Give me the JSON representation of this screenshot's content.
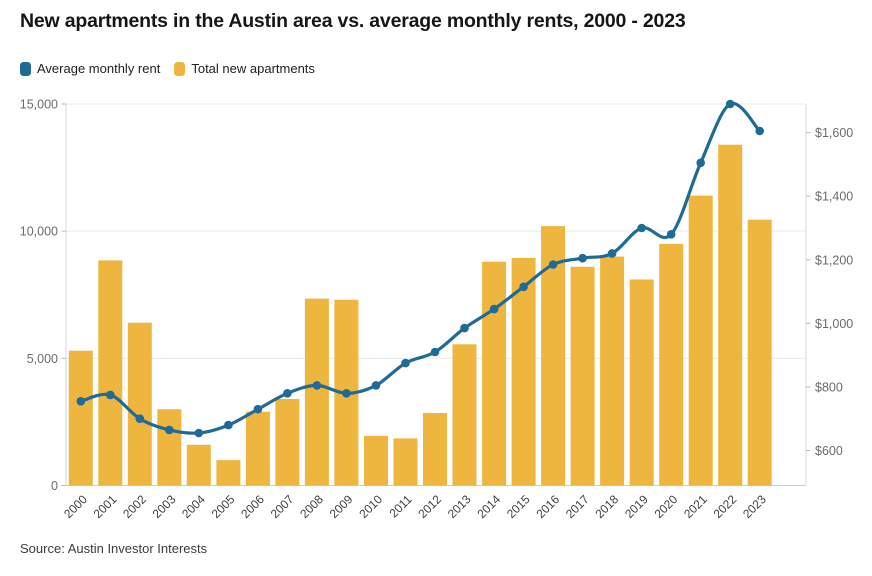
{
  "title": "New apartments in the Austin area vs. average monthly rents, 2000 - 2023",
  "source": "Source: Austin Investor Interests",
  "colors": {
    "rent_line": "#1F6A96",
    "apartment_bar": "#EEB63F",
    "grid": "#eaeaea",
    "axis_line": "#d9d9d9",
    "baseline": "#cccccc",
    "tick": "#bbbbbb"
  },
  "chart_data": {
    "type": "combo: line + bar, dual axis",
    "title": "New apartments in the Austin area vs. average monthly rents, 2000 - 2023",
    "categories": [
      "2000",
      "2001",
      "2002",
      "2003",
      "2004",
      "2005",
      "2006",
      "2007",
      "2008",
      "2009",
      "2010",
      "2011",
      "2012",
      "2013",
      "2014",
      "2015",
      "2016",
      "2017",
      "2018",
      "2019",
      "2020",
      "2021",
      "2022",
      "2023"
    ],
    "series": [
      {
        "name": "Average monthly rent",
        "type": "line",
        "axis": "right",
        "color": "#1F6A96",
        "values": [
          755,
          775,
          700,
          665,
          655,
          680,
          730,
          780,
          805,
          780,
          805,
          875,
          910,
          985,
          1045,
          1115,
          1185,
          1205,
          1220,
          1300,
          1280,
          1505,
          1690,
          1605
        ]
      },
      {
        "name": "Total new apartments",
        "type": "bar",
        "axis": "left",
        "color": "#EEB63F",
        "values": [
          5300,
          8850,
          6400,
          3000,
          1600,
          1000,
          2900,
          3400,
          7350,
          7300,
          1950,
          1850,
          2850,
          5550,
          8800,
          8950,
          10200,
          8600,
          9000,
          8100,
          9500,
          11400,
          13400,
          10450
        ]
      }
    ],
    "left_axis": {
      "range": [
        0,
        15000
      ],
      "ticks": [
        {
          "value": 0,
          "label": "0"
        },
        {
          "value": 5000,
          "label": "5,000"
        },
        {
          "value": 10000,
          "label": "10,000"
        },
        {
          "value": 15000,
          "label": "15,000"
        }
      ]
    },
    "right_axis": {
      "range": [
        490,
        1690
      ],
      "ticks": [
        {
          "value": 600,
          "label": "$600"
        },
        {
          "value": 800,
          "label": "$800"
        },
        {
          "value": 1000,
          "label": "$1,000"
        },
        {
          "value": 1200,
          "label": "$1,200"
        },
        {
          "value": 1400,
          "label": "$1,400"
        },
        {
          "value": 1600,
          "label": "$1,600"
        }
      ]
    },
    "grid": "horizontal lines at left-axis ticks only",
    "legend_position": "top-left"
  }
}
